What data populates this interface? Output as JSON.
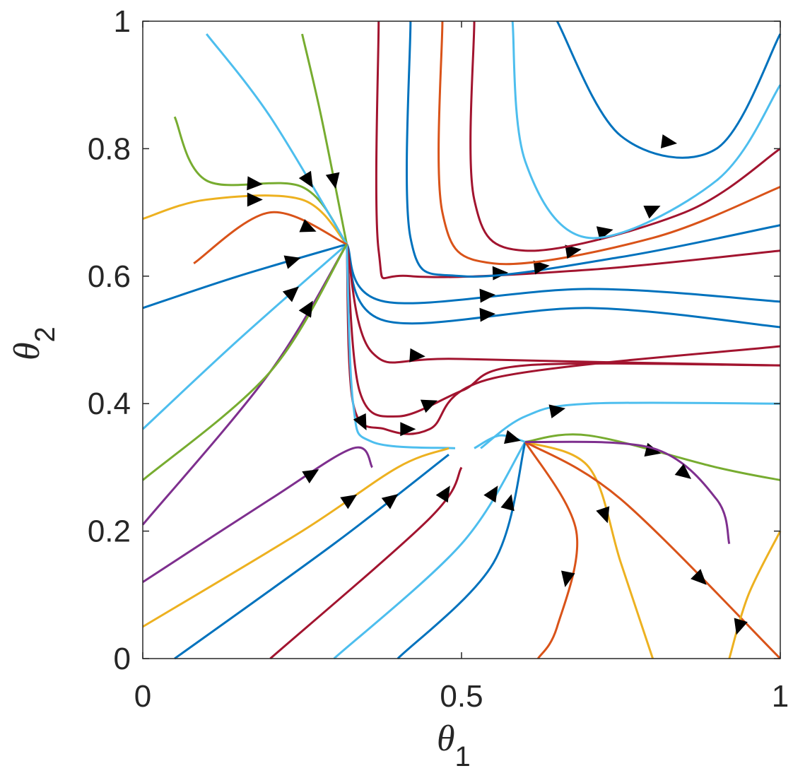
{
  "chart_data": {
    "type": "streamline",
    "x_label": {
      "symbol": "θ",
      "sub": "1"
    },
    "y_label": {
      "symbol": "θ",
      "sub": "2"
    },
    "xlim": [
      0,
      1
    ],
    "ylim": [
      0,
      1
    ],
    "xticks": [
      0,
      0.5,
      1
    ],
    "yticks": [
      0,
      0.2,
      0.4,
      0.6,
      0.8,
      1
    ],
    "series": [
      {
        "color": "#4DBEEE",
        "x": [
          0,
          0.15,
          0.32
        ],
        "y": [
          0.36,
          0.5,
          0.65
        ]
      },
      {
        "color": "#7E2F8E",
        "x": [
          0,
          0.2,
          0.32
        ],
        "y": [
          0.21,
          0.45,
          0.65
        ]
      },
      {
        "color": "#0072BD",
        "x": [
          0,
          0.15,
          0.32
        ],
        "y": [
          0.55,
          0.6,
          0.65
        ]
      },
      {
        "color": "#EDB120",
        "x": [
          0,
          0.1,
          0.25,
          0.32
        ],
        "y": [
          0.69,
          0.72,
          0.72,
          0.65
        ]
      },
      {
        "color": "#77AC30",
        "x": [
          0.05,
          0.1,
          0.25,
          0.32
        ],
        "y": [
          0.85,
          0.75,
          0.74,
          0.65
        ]
      },
      {
        "color": "#77AC30",
        "x": [
          0.25,
          0.28,
          0.32
        ],
        "y": [
          0.98,
          0.85,
          0.65
        ]
      },
      {
        "color": "#4DBEEE",
        "x": [
          0.1,
          0.2,
          0.32
        ],
        "y": [
          0.98,
          0.85,
          0.65
        ]
      },
      {
        "color": "#D95319",
        "x": [
          0.08,
          0.2,
          0.32
        ],
        "y": [
          0.62,
          0.7,
          0.65
        ]
      },
      {
        "color": "#A2142F",
        "x": [
          0.37,
          0.37,
          0.42,
          0.7,
          1
        ],
        "y": [
          1,
          0.64,
          0.6,
          0.61,
          0.64
        ]
      },
      {
        "color": "#0072BD",
        "x": [
          0.42,
          0.42,
          0.5,
          0.75,
          1
        ],
        "y": [
          1,
          0.66,
          0.6,
          0.63,
          0.68
        ]
      },
      {
        "color": "#D95319",
        "x": [
          0.47,
          0.47,
          0.55,
          0.8,
          1
        ],
        "y": [
          1,
          0.7,
          0.62,
          0.66,
          0.74
        ]
      },
      {
        "color": "#A2142F",
        "x": [
          0.52,
          0.52,
          0.6,
          0.85,
          1
        ],
        "y": [
          1,
          0.72,
          0.64,
          0.7,
          0.8
        ]
      },
      {
        "color": "#4DBEEE",
        "x": [
          0.58,
          0.6,
          0.7,
          0.9,
          1
        ],
        "y": [
          1,
          0.78,
          0.66,
          0.75,
          0.9
        ]
      },
      {
        "color": "#0072BD",
        "x": [
          0.65,
          0.75,
          0.9,
          1
        ],
        "y": [
          1,
          0.82,
          0.8,
          0.98
        ]
      },
      {
        "color": "#0072BD",
        "x": [
          0.32,
          0.38,
          0.7,
          1
        ],
        "y": [
          0.65,
          0.56,
          0.58,
          0.56
        ]
      },
      {
        "color": "#0072BD",
        "x": [
          0.32,
          0.38,
          0.7,
          1
        ],
        "y": [
          0.65,
          0.53,
          0.55,
          0.52
        ]
      },
      {
        "color": "#A2142F",
        "x": [
          0.32,
          0.36,
          0.5,
          1
        ],
        "y": [
          0.65,
          0.48,
          0.47,
          0.46
        ]
      },
      {
        "color": "#A2142F",
        "x": [
          0.32,
          0.34,
          0.4,
          0.5,
          0.6,
          1
        ],
        "y": [
          0.65,
          0.42,
          0.38,
          0.42,
          0.46,
          0.46
        ]
      },
      {
        "color": "#A2142F",
        "x": [
          0.32,
          0.33,
          0.38,
          0.45,
          0.55,
          1
        ],
        "y": [
          0.65,
          0.4,
          0.36,
          0.36,
          0.44,
          0.49
        ]
      },
      {
        "color": "#4DBEEE",
        "x": [
          0.32,
          0.33,
          0.36,
          0.49
        ],
        "y": [
          0.65,
          0.4,
          0.34,
          0.33
        ]
      },
      {
        "color": "#EDB120",
        "x": [
          0,
          0.25,
          0.4,
          0.48
        ],
        "y": [
          0.05,
          0.2,
          0.3,
          0.33
        ]
      },
      {
        "color": "#0072BD",
        "x": [
          0.05,
          0.3,
          0.48
        ],
        "y": [
          0,
          0.18,
          0.32
        ]
      },
      {
        "color": "#A2142F",
        "x": [
          0.2,
          0.45,
          0.5
        ],
        "y": [
          0,
          0.22,
          0.3
        ]
      },
      {
        "color": "#7E2F8E",
        "x": [
          0,
          0.2,
          0.33,
          0.36
        ],
        "y": [
          0.12,
          0.25,
          0.33,
          0.3
        ]
      },
      {
        "color": "#77AC30",
        "x": [
          0,
          0.2,
          0.32
        ],
        "y": [
          0.28,
          0.45,
          0.65
        ]
      },
      {
        "color": "#4DBEEE",
        "x": [
          0.3,
          0.5,
          0.6
        ],
        "y": [
          0,
          0.18,
          0.34
        ]
      },
      {
        "color": "#0072BD",
        "x": [
          0.4,
          0.55,
          0.6
        ],
        "y": [
          0,
          0.15,
          0.34
        ]
      },
      {
        "color": "#4DBEEE",
        "x": [
          0.52,
          0.56,
          0.6
        ],
        "y": [
          0.33,
          0.35,
          0.34
        ]
      },
      {
        "color": "#EDB120",
        "x": [
          0.6,
          0.7,
          0.75,
          0.8
        ],
        "y": [
          0.34,
          0.3,
          0.15,
          0
        ]
      },
      {
        "color": "#D95319",
        "x": [
          0.6,
          0.68,
          0.65,
          0.62
        ],
        "y": [
          0.34,
          0.2,
          0.05,
          0
        ]
      },
      {
        "color": "#D95319",
        "x": [
          0.6,
          0.75,
          1
        ],
        "y": [
          0.34,
          0.25,
          0
        ]
      },
      {
        "color": "#77AC30",
        "x": [
          0.6,
          0.7,
          0.9,
          1
        ],
        "y": [
          0.34,
          0.35,
          0.3,
          0.28
        ]
      },
      {
        "color": "#4DBEEE",
        "x": [
          0.53,
          0.6,
          0.7,
          1
        ],
        "y": [
          0.33,
          0.38,
          0.4,
          0.4
        ]
      },
      {
        "color": "#7E2F8E",
        "x": [
          0.6,
          0.8,
          0.9,
          0.92
        ],
        "y": [
          0.34,
          0.33,
          0.25,
          0.18
        ]
      },
      {
        "color": "#EDB120",
        "x": [
          1,
          0.95,
          0.92
        ],
        "y": [
          0.2,
          0.1,
          0
        ]
      }
    ]
  }
}
